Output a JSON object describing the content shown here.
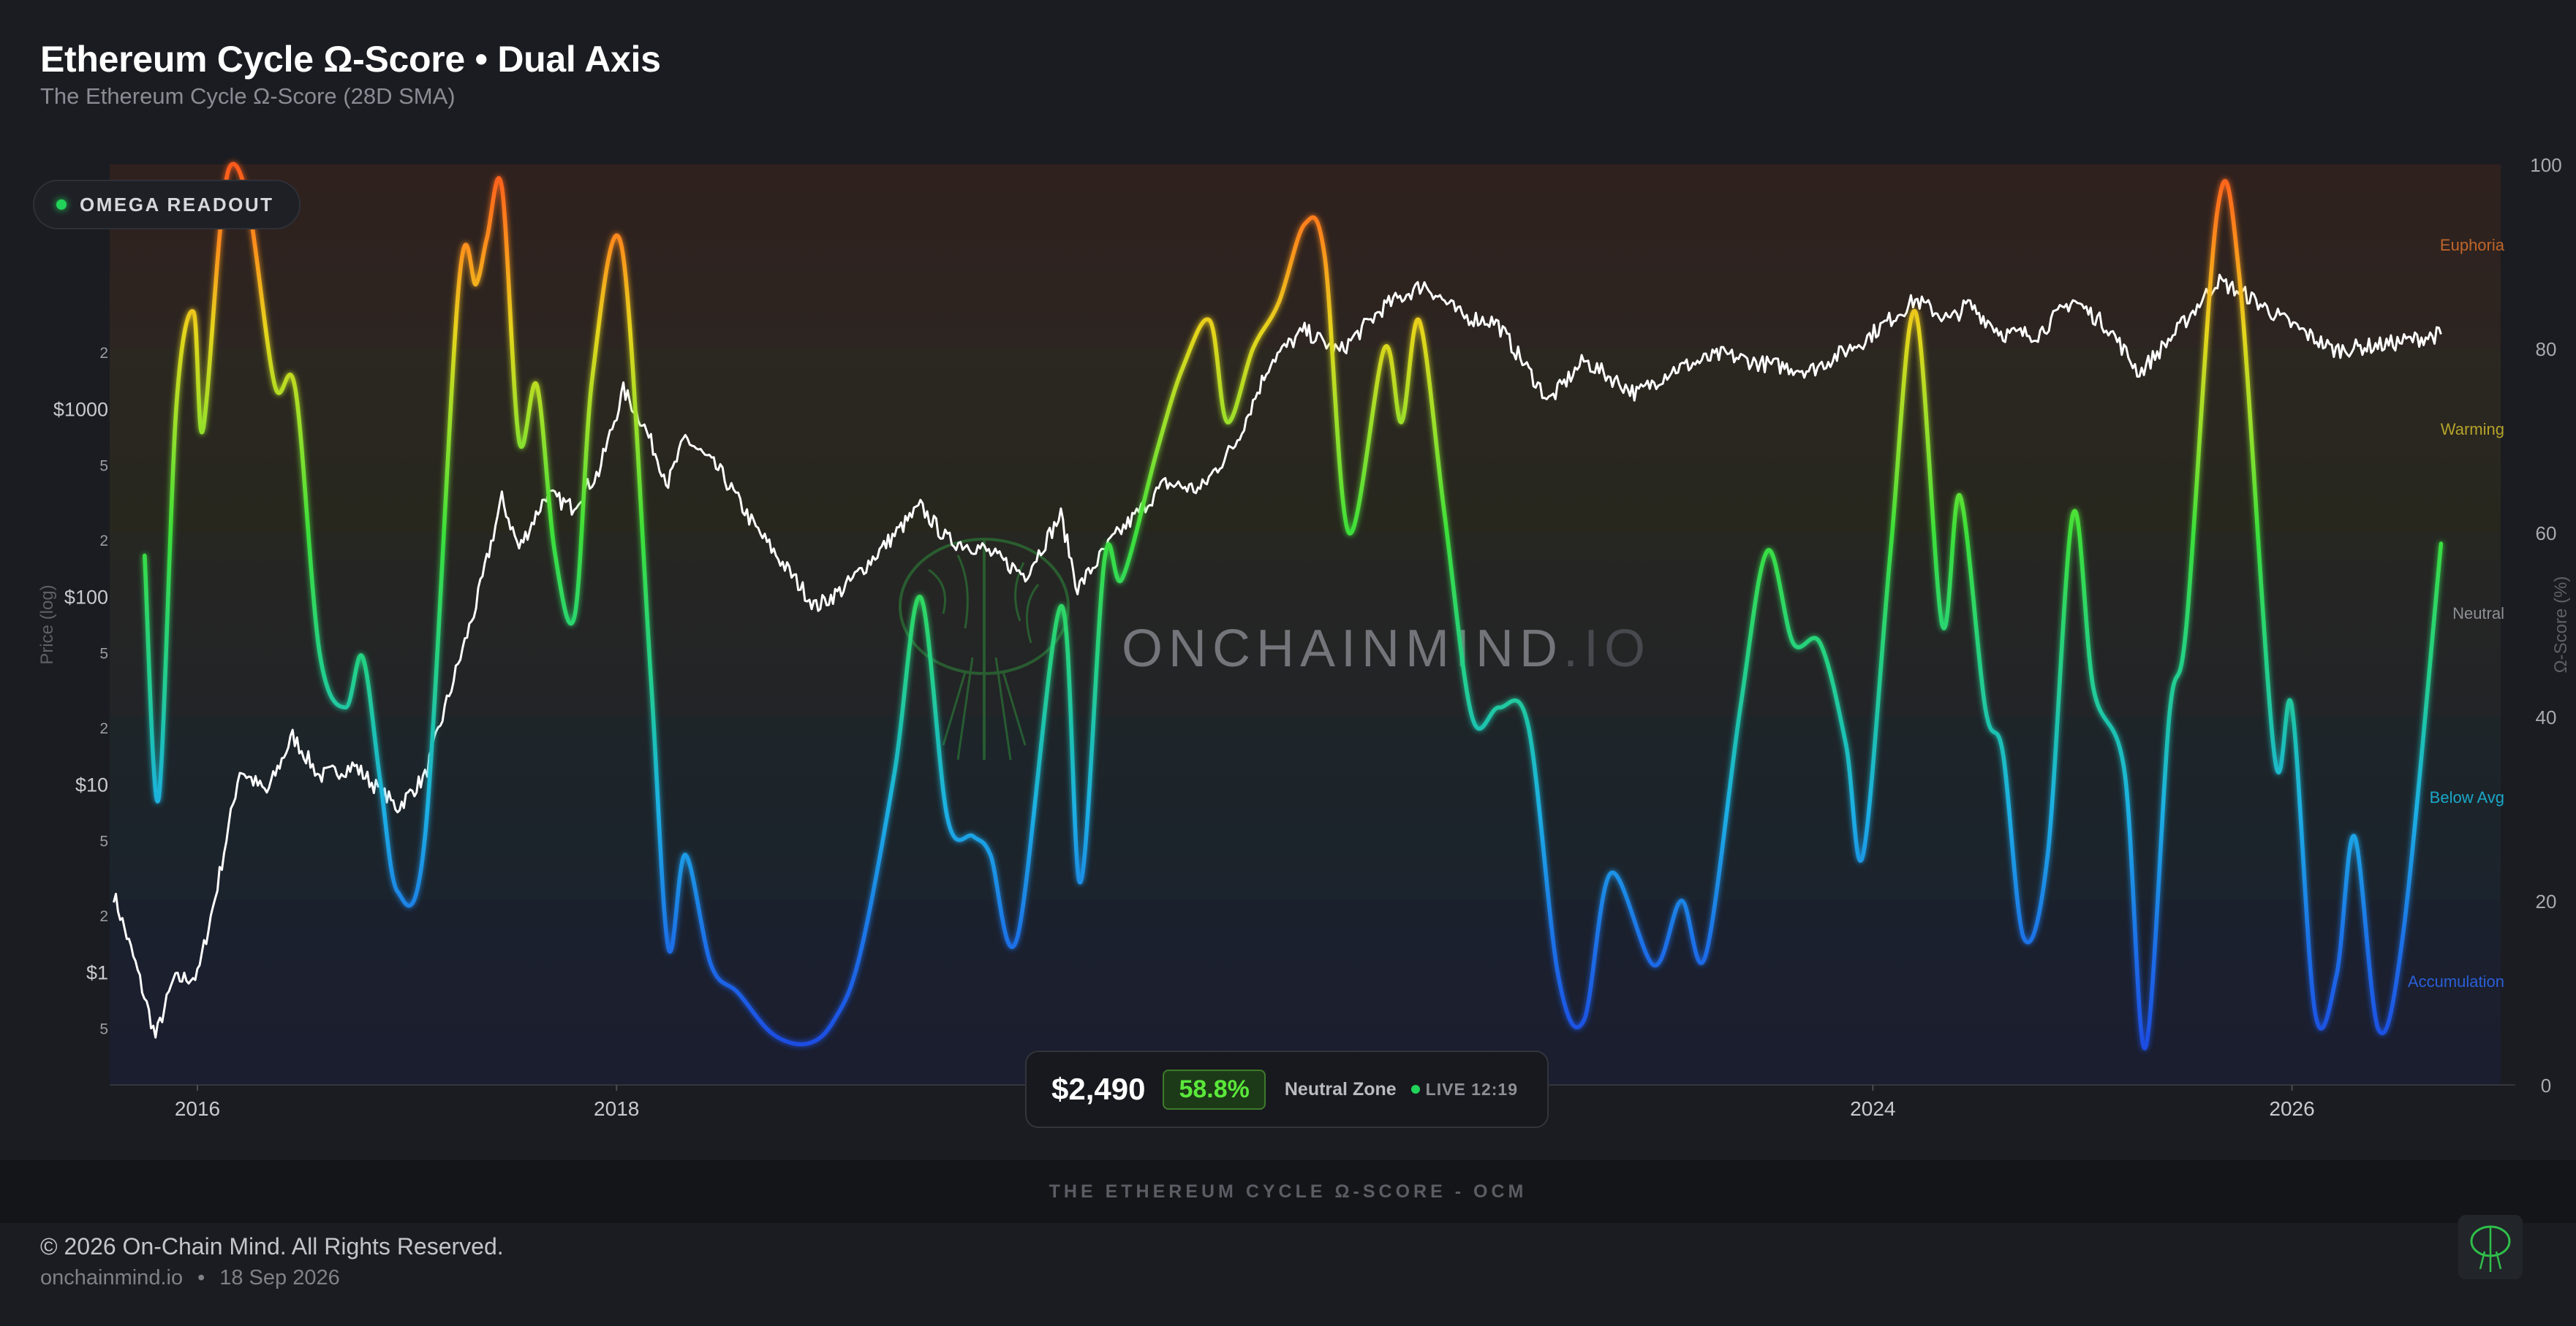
{
  "header": {
    "title": "Ethereum Cycle Ω-Score • Dual Axis",
    "subtitle": "The Ethereum Cycle Ω-Score (28D SMA)"
  },
  "readout": {
    "label": "OMEGA READOUT"
  },
  "watermark": {
    "text": "ONCHAINMIND",
    "suffix": ".IO"
  },
  "stats": {
    "price": "$2,490",
    "score": "58.8%",
    "zone": "Neutral Zone",
    "live": "LIVE 12:19"
  },
  "caption": "THE ETHEREUM CYCLE Ω-SCORE - OCM",
  "footer": {
    "copyright": "© 2026 On-Chain Mind. All Rights Reserved.",
    "site": "onchainmind.io",
    "separator": "•",
    "date": "18 Sep 2026"
  },
  "colors": {
    "background": "#1b1c21",
    "price_line": "#ffffff",
    "score_gradient": [
      "#1e4de0",
      "#1aa8e8",
      "#22d35a",
      "#e6d51a",
      "#ff6a1a"
    ],
    "accent_green": "#22d35a"
  },
  "chart_data": {
    "type": "line",
    "title": "Ethereum Cycle Ω-Score • Dual Axis",
    "subtitle": "The Ethereum Cycle Ω-Score (28D SMA)",
    "x_scale": "time",
    "x_range": [
      "2015-08-01",
      "2026-12-31"
    ],
    "x_ticks": [
      {
        "value": "2016-01-01",
        "label": "2016"
      },
      {
        "value": "2018-01-01",
        "label": "2018"
      },
      {
        "value": "2024-01-01",
        "label": "2024"
      },
      {
        "value": "2026-01-01",
        "label": "2026"
      }
    ],
    "y_left": {
      "label": "Price (log)",
      "scale": "log",
      "range": [
        0.25,
        20000
      ],
      "major_ticks": [
        {
          "value": 1,
          "label": "$1"
        },
        {
          "value": 10,
          "label": "$10"
        },
        {
          "value": 100,
          "label": "$100"
        },
        {
          "value": 1000,
          "label": "$1000"
        }
      ],
      "minor_ticks": [
        {
          "value": 0.5,
          "label": "5"
        },
        {
          "value": 2,
          "label": "2"
        },
        {
          "value": 5,
          "label": "5"
        },
        {
          "value": 20,
          "label": "2"
        },
        {
          "value": 50,
          "label": "5"
        },
        {
          "value": 200,
          "label": "2"
        },
        {
          "value": 500,
          "label": "5"
        },
        {
          "value": 2000,
          "label": "2"
        }
      ]
    },
    "y_right": {
      "label": "Ω-Score (%)",
      "range": [
        0,
        100
      ],
      "ticks": [
        0,
        20,
        40,
        60,
        80,
        100
      ]
    },
    "zones": [
      {
        "name": "Accumulation",
        "from": 0,
        "to": 20,
        "color": "#2a5fd6"
      },
      {
        "name": "Below Avg",
        "from": 20,
        "to": 40,
        "color": "#1aa8c8"
      },
      {
        "name": "Neutral",
        "from": 40,
        "to": 60,
        "color": "#8d8f95"
      },
      {
        "name": "Warming",
        "from": 60,
        "to": 80,
        "color": "#b5a22a"
      },
      {
        "name": "Euphoria",
        "from": 80,
        "to": 100,
        "color": "#c0662a"
      }
    ],
    "series": [
      {
        "axis": "left",
        "color": "#ffffff",
        "points": [
          [
            "2015-08-08",
            2.6
          ],
          [
            "2015-09-15",
            1.1
          ],
          [
            "2015-10-20",
            0.45
          ],
          [
            "2015-11-20",
            0.9
          ],
          [
            "2016-01-01",
            0.95
          ],
          [
            "2016-02-01",
            2.5
          ],
          [
            "2016-03-15",
            12
          ],
          [
            "2016-05-01",
            9
          ],
          [
            "2016-06-15",
            18
          ],
          [
            "2016-08-01",
            11
          ],
          [
            "2016-10-01",
            12.5
          ],
          [
            "2016-12-15",
            7.5
          ],
          [
            "2017-02-01",
            11
          ],
          [
            "2017-03-15",
            30
          ],
          [
            "2017-05-01",
            90
          ],
          [
            "2017-06-15",
            330
          ],
          [
            "2017-07-15",
            180
          ],
          [
            "2017-09-01",
            350
          ],
          [
            "2017-10-15",
            300
          ],
          [
            "2017-12-01",
            460
          ],
          [
            "2018-01-13",
            1250
          ],
          [
            "2018-02-15",
            850
          ],
          [
            "2018-04-01",
            400
          ],
          [
            "2018-05-01",
            700
          ],
          [
            "2018-07-01",
            460
          ],
          [
            "2018-09-01",
            230
          ],
          [
            "2018-12-15",
            88
          ],
          [
            "2019-02-01",
            110
          ],
          [
            "2019-04-01",
            170
          ],
          [
            "2019-06-15",
            300
          ],
          [
            "2019-08-01",
            200
          ],
          [
            "2019-10-01",
            180
          ],
          [
            "2019-12-15",
            130
          ],
          [
            "2020-02-15",
            270
          ],
          [
            "2020-03-15",
            110
          ],
          [
            "2020-05-15",
            200
          ],
          [
            "2020-08-15",
            400
          ],
          [
            "2020-10-15",
            370
          ],
          [
            "2020-12-15",
            650
          ],
          [
            "2021-02-15",
            1800
          ],
          [
            "2021-04-15",
            2600
          ],
          [
            "2021-06-15",
            2000
          ],
          [
            "2021-09-01",
            3500
          ],
          [
            "2021-11-10",
            4600
          ],
          [
            "2022-01-15",
            3100
          ],
          [
            "2022-03-15",
            2900
          ],
          [
            "2022-06-15",
            1100
          ],
          [
            "2022-08-15",
            1800
          ],
          [
            "2022-11-15",
            1200
          ],
          [
            "2023-01-15",
            1600
          ],
          [
            "2023-04-15",
            1950
          ],
          [
            "2023-06-15",
            1750
          ],
          [
            "2023-09-15",
            1600
          ],
          [
            "2023-12-15",
            2300
          ],
          [
            "2024-03-15",
            3800
          ],
          [
            "2024-05-15",
            2950
          ],
          [
            "2024-06-15",
            3600
          ],
          [
            "2024-08-15",
            2500
          ],
          [
            "2024-10-15",
            2500
          ],
          [
            "2024-12-15",
            3800
          ],
          [
            "2025-02-15",
            2700
          ],
          [
            "2025-04-10",
            1550
          ],
          [
            "2025-06-15",
            2600
          ],
          [
            "2025-08-24",
            4800
          ],
          [
            "2025-10-15",
            4000
          ],
          [
            "2025-12-15",
            3000
          ],
          [
            "2026-03-15",
            2050
          ],
          [
            "2026-06-15",
            2200
          ],
          [
            "2026-09-18",
            2490
          ]
        ]
      },
      {
        "axis": "right",
        "color": "gradient",
        "points": [
          [
            "2015-10-01",
            57.5
          ],
          [
            "2015-10-25",
            31
          ],
          [
            "2015-11-25",
            73.5
          ],
          [
            "2015-12-25",
            84
          ],
          [
            "2016-01-10",
            71
          ],
          [
            "2016-02-10",
            93
          ],
          [
            "2016-03-01",
            100
          ],
          [
            "2016-04-01",
            95
          ],
          [
            "2016-05-15",
            76
          ],
          [
            "2016-06-20",
            75.5
          ],
          [
            "2016-08-01",
            47
          ],
          [
            "2016-09-15",
            41
          ],
          [
            "2016-10-15",
            46.5
          ],
          [
            "2016-11-15",
            33
          ],
          [
            "2016-12-15",
            21
          ],
          [
            "2017-02-01",
            27
          ],
          [
            "2017-04-01",
            87
          ],
          [
            "2017-05-01",
            87
          ],
          [
            "2017-05-20",
            92
          ],
          [
            "2017-06-15",
            97.5
          ],
          [
            "2017-07-15",
            70
          ],
          [
            "2017-08-15",
            76
          ],
          [
            "2017-09-15",
            58
          ],
          [
            "2017-10-20",
            51
          ],
          [
            "2017-11-20",
            77
          ],
          [
            "2018-01-10",
            91
          ],
          [
            "2018-03-01",
            45
          ],
          [
            "2018-04-01",
            15
          ],
          [
            "2018-05-01",
            25
          ],
          [
            "2018-06-15",
            13
          ],
          [
            "2018-08-01",
            10
          ],
          [
            "2018-10-01",
            5.5
          ],
          [
            "2018-12-01",
            4.5
          ],
          [
            "2019-01-15",
            7
          ],
          [
            "2019-03-01",
            14
          ],
          [
            "2019-05-01",
            34
          ],
          [
            "2019-06-15",
            53
          ],
          [
            "2019-08-01",
            29
          ],
          [
            "2019-09-15",
            27
          ],
          [
            "2019-10-15",
            25
          ],
          [
            "2019-12-01",
            16
          ],
          [
            "2020-02-15",
            52
          ],
          [
            "2020-03-20",
            22
          ],
          [
            "2020-05-01",
            57
          ],
          [
            "2020-06-01",
            55
          ],
          [
            "2020-08-01",
            69
          ],
          [
            "2020-09-15",
            78
          ],
          [
            "2020-11-01",
            83
          ],
          [
            "2020-12-01",
            72
          ],
          [
            "2021-01-15",
            80
          ],
          [
            "2021-03-01",
            85
          ],
          [
            "2021-04-15",
            93.5
          ],
          [
            "2021-05-20",
            90
          ],
          [
            "2021-07-01",
            60
          ],
          [
            "2021-09-01",
            80
          ],
          [
            "2021-10-01",
            72
          ],
          [
            "2021-11-01",
            83
          ],
          [
            "2021-12-15",
            62
          ],
          [
            "2022-02-01",
            40
          ],
          [
            "2022-03-20",
            41
          ],
          [
            "2022-05-10",
            39
          ],
          [
            "2022-07-01",
            12
          ],
          [
            "2022-08-15",
            7
          ],
          [
            "2022-10-01",
            23
          ],
          [
            "2022-12-15",
            13
          ],
          [
            "2023-02-01",
            20
          ],
          [
            "2023-03-15",
            14
          ],
          [
            "2023-05-15",
            41
          ],
          [
            "2023-07-01",
            58
          ],
          [
            "2023-08-15",
            48
          ],
          [
            "2023-10-01",
            48
          ],
          [
            "2023-11-15",
            37
          ],
          [
            "2023-12-15",
            25
          ],
          [
            "2024-02-01",
            58
          ],
          [
            "2024-03-15",
            84
          ],
          [
            "2024-05-01",
            50
          ],
          [
            "2024-06-01",
            64
          ],
          [
            "2024-07-15",
            41
          ],
          [
            "2024-08-15",
            36
          ],
          [
            "2024-09-20",
            16
          ],
          [
            "2024-11-01",
            25
          ],
          [
            "2024-12-15",
            62
          ],
          [
            "2025-01-20",
            43
          ],
          [
            "2025-03-15",
            34
          ],
          [
            "2025-04-20",
            4
          ],
          [
            "2025-06-01",
            40
          ],
          [
            "2025-07-01",
            50
          ],
          [
            "2025-08-24",
            95
          ],
          [
            "2025-10-01",
            88
          ],
          [
            "2025-12-01",
            36
          ],
          [
            "2026-01-01",
            41
          ],
          [
            "2026-02-10",
            8
          ],
          [
            "2026-03-20",
            12
          ],
          [
            "2026-04-20",
            27
          ],
          [
            "2026-06-01",
            6
          ],
          [
            "2026-07-15",
            17
          ],
          [
            "2026-09-18",
            58.8
          ]
        ]
      }
    ]
  }
}
